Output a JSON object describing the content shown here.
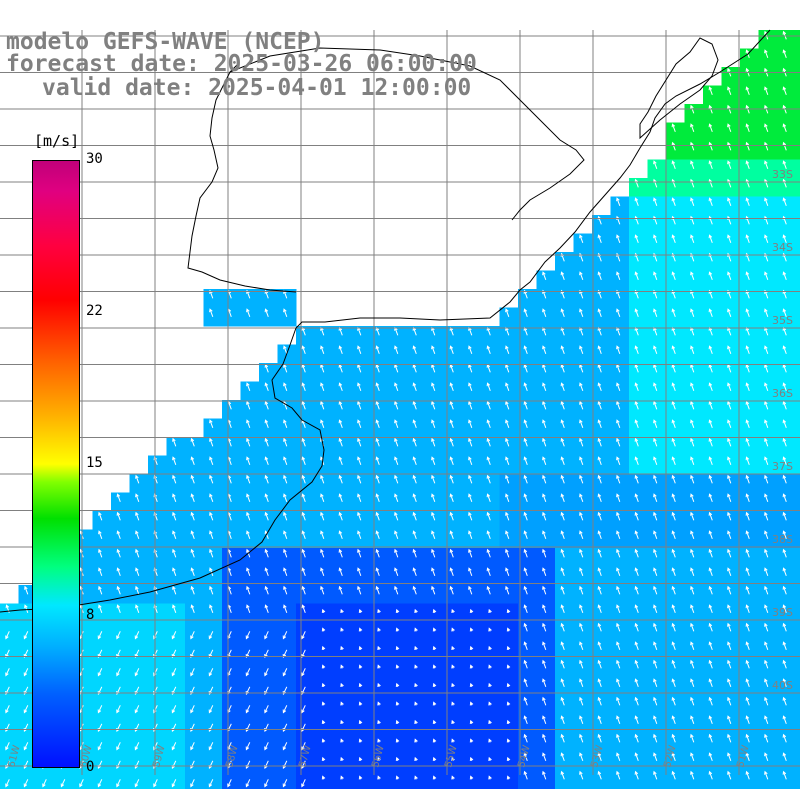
{
  "title": {
    "line1": "modelo GEFS-WAVE (NCEP)",
    "line2": "forecast date: 2025-03-26 06:00:00",
    "line3": "valid date: 2025-04-01 12:00:00"
  },
  "colorbar": {
    "unit": "[m/s]",
    "ticks": [
      {
        "value": 30,
        "label": "30"
      },
      {
        "value": 22,
        "label": "22"
      },
      {
        "value": 15,
        "label": "15"
      },
      {
        "value": 8,
        "label": "8"
      },
      {
        "value": 0,
        "label": "0"
      }
    ],
    "min": 0,
    "max": 30
  },
  "map": {
    "variable": "wind speed and direction",
    "lat_labels": [
      "33S",
      "34S",
      "35S",
      "36S",
      "37S",
      "38S",
      "39S",
      "40S"
    ],
    "lon_labels": [
      "61W",
      "60W",
      "59W",
      "58W",
      "57W",
      "56W",
      "55W",
      "54W",
      "53W",
      "52W",
      "51W"
    ],
    "grid_color": "#808080",
    "land_color": "#ffffff",
    "arrow_color": "#ffffff"
  }
}
